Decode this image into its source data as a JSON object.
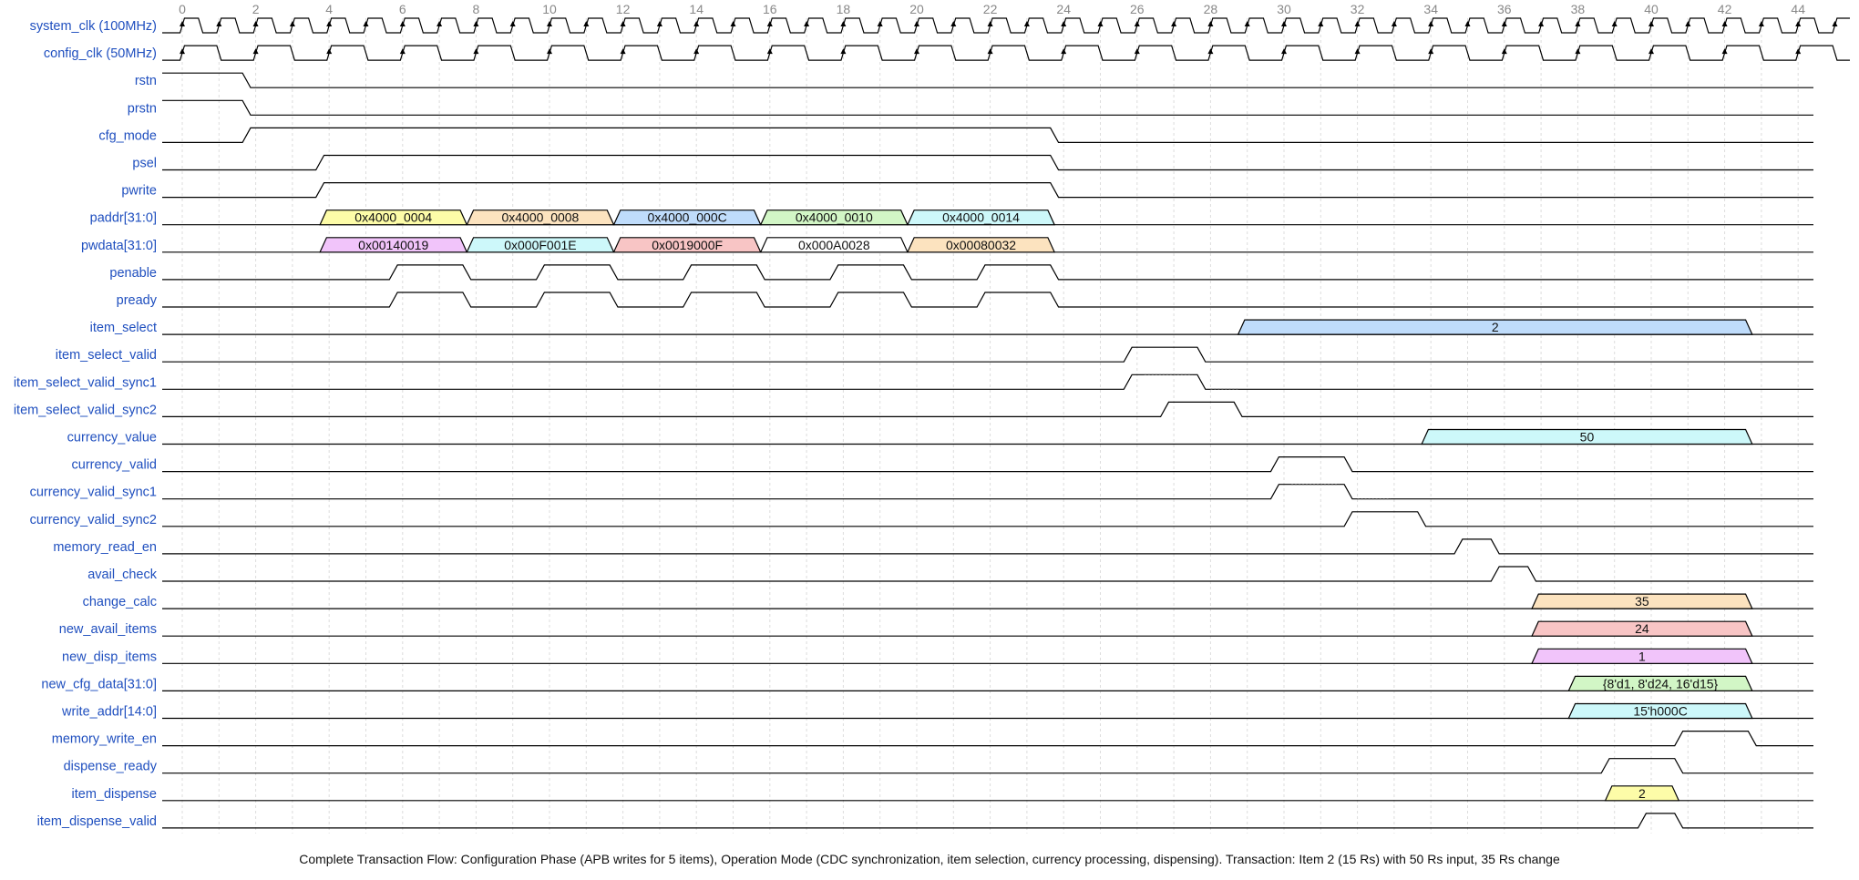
{
  "caption": "Complete Transaction Flow: Configuration Phase (APB writes for 5 items), Operation Mode (CDC synchronization, item selection, currency processing, dispensing). Transaction: Item 2 (15 Rs) with 50 Rs input, 35 Rs change",
  "time_axis": {
    "min": 0,
    "max": 44,
    "labels": [
      "0",
      "2",
      "4",
      "6",
      "8",
      "10",
      "12",
      "14",
      "16",
      "18",
      "20",
      "22",
      "24",
      "26",
      "28",
      "30",
      "32",
      "34",
      "36",
      "38",
      "40",
      "42",
      "44"
    ]
  },
  "colors": {
    "signal_name": "#1f4fbf",
    "grid": "#dddddd",
    "wave": "#000000",
    "yellow": "#fdfca8",
    "orange": "#fce3bf",
    "blue": "#bfdcfb",
    "green": "#d2f6c6",
    "cyan": "#cdf8fa",
    "purple": "#f1c4fa",
    "red": "#f8c5c5",
    "white": "#ffffff"
  },
  "signals": [
    {
      "name": "system_clk (100MHz)",
      "type": "clock",
      "period": 1,
      "arrows": true
    },
    {
      "name": "config_clk (50MHz)",
      "type": "clock",
      "period": 2,
      "arrows": true
    },
    {
      "name": "rstn",
      "type": "bit",
      "transitions": [
        [
          0,
          1
        ],
        [
          1.75,
          0
        ]
      ]
    },
    {
      "name": "prstn",
      "type": "bit",
      "transitions": [
        [
          0,
          1
        ],
        [
          1.75,
          0
        ]
      ]
    },
    {
      "name": "cfg_mode",
      "type": "bit",
      "transitions": [
        [
          0,
          0
        ],
        [
          1.75,
          1
        ],
        [
          23.75,
          0
        ]
      ]
    },
    {
      "name": "psel",
      "type": "bit",
      "transitions": [
        [
          0,
          0
        ],
        [
          3.75,
          1
        ],
        [
          23.75,
          0
        ]
      ]
    },
    {
      "name": "pwrite",
      "type": "bit",
      "transitions": [
        [
          0,
          0
        ],
        [
          3.75,
          1
        ],
        [
          23.75,
          0
        ]
      ]
    },
    {
      "name": "paddr[31:0]",
      "type": "bus",
      "segments": [
        {
          "start": 3.75,
          "end": 7.75,
          "label": "0x4000_0004",
          "color": "yellow"
        },
        {
          "start": 7.75,
          "end": 11.75,
          "label": "0x4000_0008",
          "color": "orange"
        },
        {
          "start": 11.75,
          "end": 15.75,
          "label": "0x4000_000C",
          "color": "blue"
        },
        {
          "start": 15.75,
          "end": 19.75,
          "label": "0x4000_0010",
          "color": "green"
        },
        {
          "start": 19.75,
          "end": 23.75,
          "label": "0x4000_0014",
          "color": "cyan"
        }
      ]
    },
    {
      "name": "pwdata[31:0]",
      "type": "bus",
      "segments": [
        {
          "start": 3.75,
          "end": 7.75,
          "label": "0x00140019",
          "color": "purple"
        },
        {
          "start": 7.75,
          "end": 11.75,
          "label": "0x000F001E",
          "color": "cyan"
        },
        {
          "start": 11.75,
          "end": 15.75,
          "label": "0x0019000F",
          "color": "red"
        },
        {
          "start": 15.75,
          "end": 19.75,
          "label": "0x000A0028",
          "color": "white"
        },
        {
          "start": 19.75,
          "end": 23.75,
          "label": "0x00080032",
          "color": "orange"
        }
      ]
    },
    {
      "name": "penable",
      "type": "bit",
      "transitions": [
        [
          0,
          0
        ],
        [
          5.75,
          1
        ],
        [
          7.75,
          0
        ],
        [
          9.75,
          1
        ],
        [
          11.75,
          0
        ],
        [
          13.75,
          1
        ],
        [
          15.75,
          0
        ],
        [
          17.75,
          1
        ],
        [
          19.75,
          0
        ],
        [
          21.75,
          1
        ],
        [
          23.75,
          0
        ]
      ]
    },
    {
      "name": "pready",
      "type": "bit",
      "transitions": [
        [
          0,
          0
        ],
        [
          5.75,
          1
        ],
        [
          7.75,
          0
        ],
        [
          9.75,
          1
        ],
        [
          11.75,
          0
        ],
        [
          13.75,
          1
        ],
        [
          15.75,
          0
        ],
        [
          17.75,
          1
        ],
        [
          19.75,
          0
        ],
        [
          21.75,
          1
        ],
        [
          23.75,
          0
        ]
      ]
    },
    {
      "name": "item_select",
      "type": "bus",
      "segments": [
        {
          "start": 28.75,
          "end": 42.75,
          "label": "2",
          "color": "blue"
        }
      ]
    },
    {
      "name": "item_select_valid",
      "type": "bit",
      "transitions": [
        [
          0,
          0
        ],
        [
          25.75,
          1
        ],
        [
          27.75,
          0
        ]
      ]
    },
    {
      "name": "item_select_valid_sync1",
      "type": "bit",
      "transitions": [
        [
          0,
          0
        ],
        [
          25.75,
          1
        ],
        [
          27.75,
          0
        ]
      ],
      "dotted": [
        [
          26.2,
          27.5,
          1
        ],
        [
          28,
          28.75,
          0
        ]
      ]
    },
    {
      "name": "item_select_valid_sync2",
      "type": "bit",
      "transitions": [
        [
          0,
          0
        ],
        [
          26.75,
          1
        ],
        [
          28.75,
          0
        ]
      ]
    },
    {
      "name": "currency_value",
      "type": "bus",
      "segments": [
        {
          "start": 33.75,
          "end": 42.75,
          "label": "50",
          "color": "cyan"
        }
      ]
    },
    {
      "name": "currency_valid",
      "type": "bit",
      "transitions": [
        [
          0,
          0
        ],
        [
          29.75,
          1
        ],
        [
          31.75,
          0
        ]
      ]
    },
    {
      "name": "currency_valid_sync1",
      "type": "bit",
      "transitions": [
        [
          0,
          0
        ],
        [
          29.75,
          1
        ],
        [
          31.75,
          0
        ]
      ],
      "dotted": [
        [
          30.2,
          31.5,
          1
        ],
        [
          32,
          32.9,
          0
        ]
      ]
    },
    {
      "name": "currency_valid_sync2",
      "type": "bit",
      "transitions": [
        [
          0,
          0
        ],
        [
          31.75,
          1
        ],
        [
          33.75,
          0
        ]
      ]
    },
    {
      "name": "memory_read_en",
      "type": "bit",
      "transitions": [
        [
          0,
          0
        ],
        [
          34.75,
          1
        ],
        [
          35.75,
          0
        ]
      ]
    },
    {
      "name": "avail_check",
      "type": "bit",
      "transitions": [
        [
          0,
          0
        ],
        [
          35.75,
          1
        ],
        [
          36.75,
          0
        ]
      ]
    },
    {
      "name": "change_calc",
      "type": "bus",
      "segments": [
        {
          "start": 36.75,
          "end": 42.75,
          "label": "35",
          "color": "orange"
        }
      ]
    },
    {
      "name": "new_avail_items",
      "type": "bus",
      "segments": [
        {
          "start": 36.75,
          "end": 42.75,
          "label": "24",
          "color": "red"
        }
      ]
    },
    {
      "name": "new_disp_items",
      "type": "bus",
      "segments": [
        {
          "start": 36.75,
          "end": 42.75,
          "label": "1",
          "color": "purple"
        }
      ]
    },
    {
      "name": "new_cfg_data[31:0]",
      "type": "bus",
      "segments": [
        {
          "start": 37.75,
          "end": 42.75,
          "label": "{8'd1, 8'd24, 16'd15}",
          "color": "green"
        }
      ]
    },
    {
      "name": "write_addr[14:0]",
      "type": "bus",
      "segments": [
        {
          "start": 37.75,
          "end": 42.75,
          "label": "15'h000C",
          "color": "cyan"
        }
      ]
    },
    {
      "name": "memory_write_en",
      "type": "bit",
      "transitions": [
        [
          0,
          0
        ],
        [
          40.75,
          1
        ],
        [
          42.75,
          0
        ]
      ]
    },
    {
      "name": "dispense_ready",
      "type": "bit",
      "transitions": [
        [
          0,
          0
        ],
        [
          38.75,
          1
        ],
        [
          40.75,
          0
        ]
      ]
    },
    {
      "name": "item_dispense",
      "type": "bus",
      "segments": [
        {
          "start": 38.75,
          "end": 40.75,
          "label": "2",
          "color": "yellow"
        }
      ]
    },
    {
      "name": "item_dispense_valid",
      "type": "bit",
      "transitions": [
        [
          0,
          0
        ],
        [
          39.75,
          1
        ],
        [
          40.75,
          0
        ]
      ]
    }
  ]
}
